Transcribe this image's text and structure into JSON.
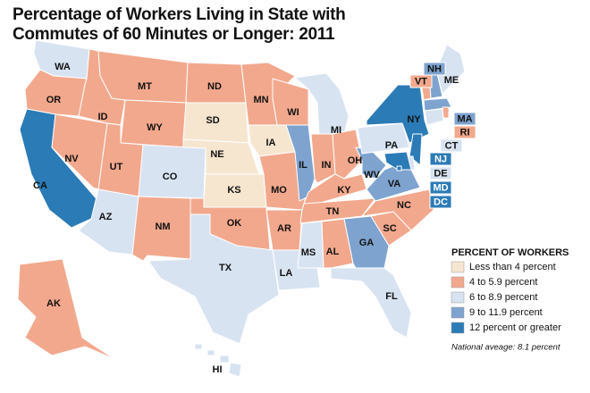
{
  "title": "Percentage of Workers Living in State with Commutes of 60 Minutes or Longer: 2011",
  "legend": {
    "title": "PERCENT OF WORKERS",
    "items": [
      {
        "label": "Less than 4 percent",
        "color": "#f6e6d0"
      },
      {
        "label": "4 to 5.9 percent",
        "color": "#f2a88d"
      },
      {
        "label": "6 to 8.9 percent",
        "color": "#d7e3f1"
      },
      {
        "label": "9 to 11.9 percent",
        "color": "#7ea3cf"
      },
      {
        "label": "12 percent or greater",
        "color": "#2b7bb6"
      }
    ]
  },
  "note": "National aveage: 8.1 percent",
  "states": [
    {
      "label": "WA",
      "color": "#d7e3f1"
    },
    {
      "label": "OR",
      "color": "#f2a88d"
    },
    {
      "label": "CA",
      "color": "#2b7bb6"
    },
    {
      "label": "NV",
      "color": "#f2a88d"
    },
    {
      "label": "ID",
      "color": "#f2a88d"
    },
    {
      "label": "MT",
      "color": "#f2a88d"
    },
    {
      "label": "WY",
      "color": "#f2a88d"
    },
    {
      "label": "UT",
      "color": "#f2a88d"
    },
    {
      "label": "AZ",
      "color": "#d7e3f1"
    },
    {
      "label": "CO",
      "color": "#d7e3f1"
    },
    {
      "label": "NM",
      "color": "#f2a88d"
    },
    {
      "label": "ND",
      "color": "#f2a88d"
    },
    {
      "label": "SD",
      "color": "#f6e6d0"
    },
    {
      "label": "NE",
      "color": "#f6e6d0"
    },
    {
      "label": "KS",
      "color": "#f6e6d0"
    },
    {
      "label": "OK",
      "color": "#f2a88d"
    },
    {
      "label": "TX",
      "color": "#d7e3f1"
    },
    {
      "label": "MN",
      "color": "#f2a88d"
    },
    {
      "label": "IA",
      "color": "#f6e6d0"
    },
    {
      "label": "MO",
      "color": "#f2a88d"
    },
    {
      "label": "AR",
      "color": "#f2a88d"
    },
    {
      "label": "LA",
      "color": "#d7e3f1"
    },
    {
      "label": "WI",
      "color": "#f2a88d"
    },
    {
      "label": "IL",
      "color": "#7ea3cf"
    },
    {
      "label": "MI",
      "color": "#d7e3f1"
    },
    {
      "label": "IN",
      "color": "#f2a88d"
    },
    {
      "label": "OH",
      "color": "#f2a88d"
    },
    {
      "label": "KY",
      "color": "#f2a88d"
    },
    {
      "label": "TN",
      "color": "#f2a88d"
    },
    {
      "label": "MS",
      "color": "#d7e3f1"
    },
    {
      "label": "AL",
      "color": "#f2a88d"
    },
    {
      "label": "GA",
      "color": "#7ea3cf"
    },
    {
      "label": "FL",
      "color": "#d7e3f1"
    },
    {
      "label": "SC",
      "color": "#f2a88d"
    },
    {
      "label": "NC",
      "color": "#f2a88d"
    },
    {
      "label": "VA",
      "color": "#7ea3cf"
    },
    {
      "label": "WV",
      "color": "#7ea3cf"
    },
    {
      "label": "PA",
      "color": "#d7e3f1"
    },
    {
      "label": "NY",
      "color": "#2b7bb6"
    },
    {
      "label": "VT",
      "color": "#f2a88d"
    },
    {
      "label": "NH",
      "color": "#7ea3cf"
    },
    {
      "label": "ME",
      "color": "#d7e3f1"
    },
    {
      "label": "MA",
      "color": "#7ea3cf"
    },
    {
      "label": "RI",
      "color": "#f2a88d"
    },
    {
      "label": "CT",
      "color": "#d7e3f1"
    },
    {
      "label": "NJ",
      "color": "#2b7bb6"
    },
    {
      "label": "DE",
      "color": "#d7e3f1"
    },
    {
      "label": "MD",
      "color": "#2b7bb6"
    },
    {
      "label": "DC",
      "color": "#2b7bb6"
    },
    {
      "label": "AK",
      "color": "#f2a88d"
    },
    {
      "label": "HI",
      "color": "#d7e3f1"
    }
  ]
}
